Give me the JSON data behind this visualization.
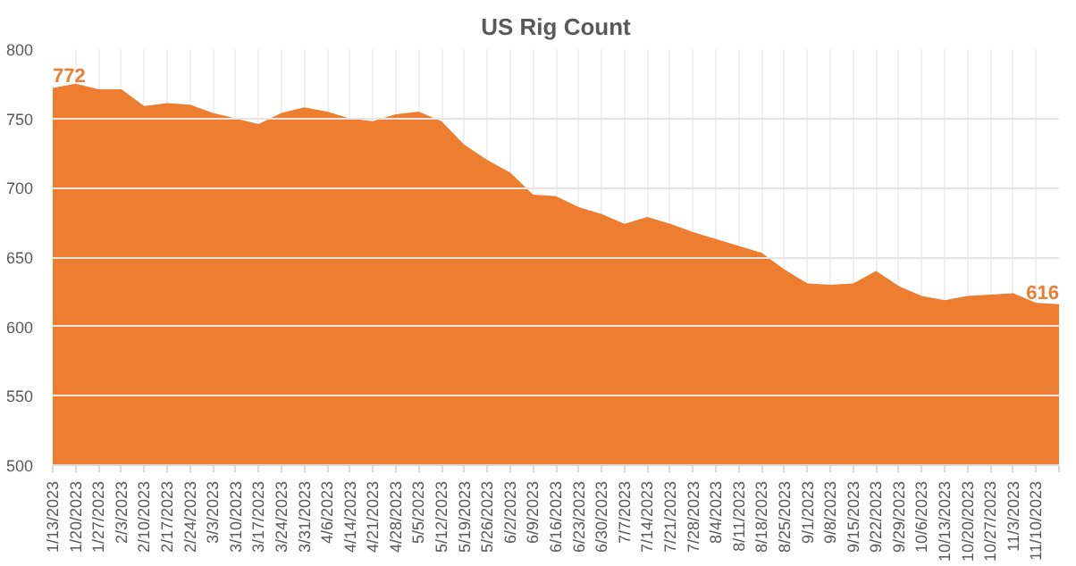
{
  "chart_data": {
    "type": "area",
    "title": "US Rig Count",
    "categories": [
      "1/13/2023",
      "1/20/2023",
      "1/27/2023",
      "2/3/2023",
      "2/10/2023",
      "2/17/2023",
      "2/24/2023",
      "3/3/2023",
      "3/10/2023",
      "3/17/2023",
      "3/24/2023",
      "3/31/2023",
      "4/6/2023",
      "4/14/2023",
      "4/21/2023",
      "4/28/2023",
      "5/5/2023",
      "5/12/2023",
      "5/19/2023",
      "5/26/2023",
      "6/2/2023",
      "6/9/2023",
      "6/16/2023",
      "6/23/2023",
      "6/30/2023",
      "7/7/2023",
      "7/14/2023",
      "7/21/2023",
      "7/28/2023",
      "8/4/2023",
      "8/11/2023",
      "8/18/2023",
      "8/25/2023",
      "9/1/2023",
      "9/8/2023",
      "9/15/2023",
      "9/22/2023",
      "9/29/2023",
      "10/6/2023",
      "10/13/2023",
      "10/20/2023",
      "10/27/2023",
      "11/3/2023",
      "11/10/2023",
      null
    ],
    "series": [
      {
        "color": "#ed7d31",
        "values": [
          772,
          775,
          771,
          771,
          759,
          761,
          760,
          754,
          750,
          746,
          754,
          758,
          755,
          750,
          748,
          753,
          755,
          748,
          731,
          720,
          711,
          695,
          694,
          686,
          681,
          674,
          679,
          674,
          668,
          663,
          658,
          653,
          641,
          631,
          630,
          631,
          640,
          629,
          622,
          619,
          622,
          623,
          624,
          617,
          616
        ],
        "value_labels": [
          "772",
          null,
          null,
          null,
          null,
          null,
          null,
          null,
          null,
          null,
          null,
          null,
          null,
          null,
          null,
          null,
          null,
          null,
          null,
          null,
          null,
          null,
          null,
          null,
          null,
          null,
          null,
          null,
          null,
          null,
          null,
          null,
          null,
          null,
          null,
          null,
          null,
          null,
          null,
          null,
          null,
          null,
          null,
          null,
          "616"
        ]
      }
    ],
    "ylim": [
      500,
      800
    ],
    "yticks": [
      500,
      550,
      600,
      650,
      700,
      750,
      800
    ],
    "grid": true
  }
}
